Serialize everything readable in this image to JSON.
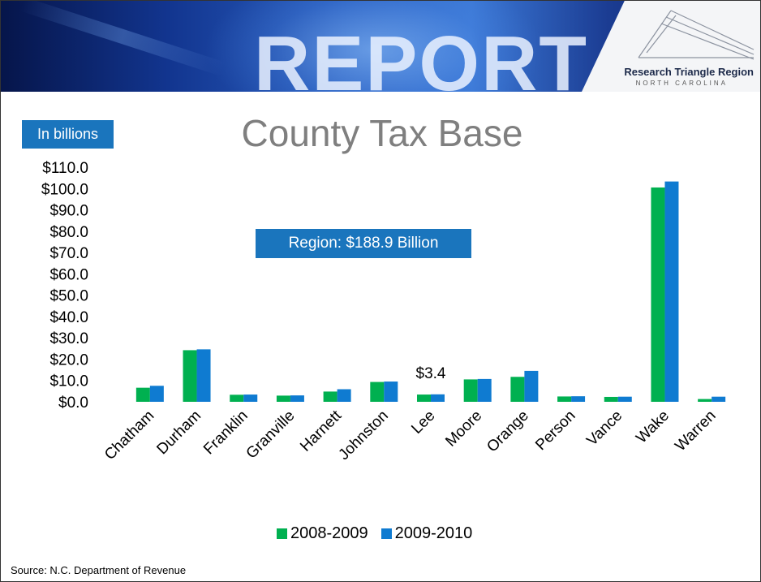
{
  "banner": {
    "word": "REPORT"
  },
  "logo": {
    "name": "Research Triangle Region",
    "sub": "NORTH CAROLINA"
  },
  "units_badge": "In billions",
  "region_label": "Region: $188.9 Billion",
  "source": "Source: N.C. Department of Revenue",
  "colors": {
    "series1": "#00b050",
    "series2": "#0f7bd1",
    "badge": "#1a75bd",
    "title": "#7f7f7f"
  },
  "chart_data": {
    "type": "bar",
    "title": "County Tax Base",
    "xlabel": "",
    "ylabel": "",
    "ylim": [
      0,
      110
    ],
    "yticks": [
      0,
      10,
      20,
      30,
      40,
      50,
      60,
      70,
      80,
      90,
      100,
      110
    ],
    "ytick_labels": [
      "$0.0",
      "$10.0",
      "$20.0",
      "$30.0",
      "$40.0",
      "$50.0",
      "$60.0",
      "$70.0",
      "$80.0",
      "$90.0",
      "$100.0",
      "$110.0"
    ],
    "grid": false,
    "legend": "bottom",
    "categories": [
      "Chatham",
      "Durham",
      "Franklin",
      "Granville",
      "Harnett",
      "Johnston",
      "Lee",
      "Moore",
      "Orange",
      "Person",
      "Vance",
      "Wake",
      "Warren"
    ],
    "series": [
      {
        "name": "2008-2009",
        "values": [
          6.6,
          24.2,
          3.3,
          2.9,
          4.8,
          9.3,
          3.4,
          10.5,
          11.7,
          2.5,
          2.3,
          100.5,
          1.3
        ]
      },
      {
        "name": "2009-2010",
        "values": [
          7.5,
          24.6,
          3.4,
          3.0,
          5.9,
          9.5,
          3.5,
          10.7,
          14.5,
          2.6,
          2.4,
          103.3,
          2.4
        ]
      }
    ],
    "annotations": [
      {
        "category": "Lee",
        "text": "$3.4"
      }
    ]
  }
}
